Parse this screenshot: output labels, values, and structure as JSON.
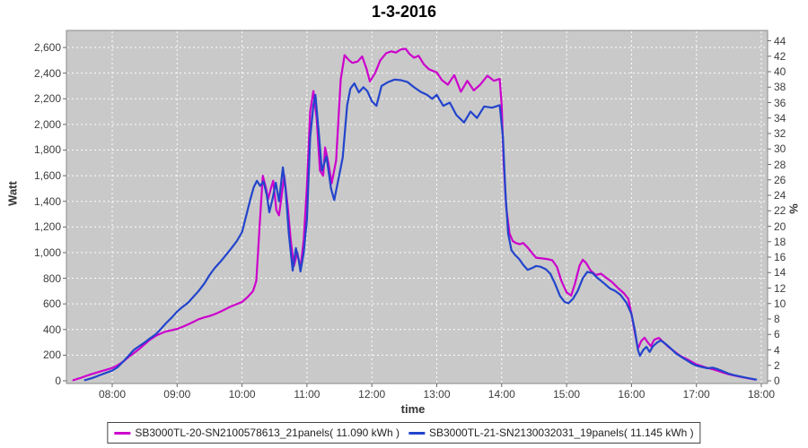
{
  "title": "1-3-2016",
  "axes": {
    "x": {
      "label": "time",
      "tick_labels": [
        "08:00",
        "09:00",
        "10:00",
        "11:00",
        "12:00",
        "13:00",
        "14:00",
        "15:00",
        "16:00",
        "17:00",
        "18:00"
      ]
    },
    "left": {
      "label": "Watt",
      "tick_labels": [
        "0",
        "200",
        "400",
        "600",
        "800",
        "1,000",
        "1,200",
        "1,400",
        "1,600",
        "1,800",
        "2,000",
        "2,200",
        "2,400",
        "2,600"
      ]
    },
    "right": {
      "label": "%",
      "tick_labels": [
        "0",
        "2",
        "4",
        "6",
        "8",
        "10",
        "12",
        "14",
        "16",
        "18",
        "20",
        "22",
        "24",
        "26",
        "28",
        "30",
        "32",
        "34",
        "36",
        "38",
        "40",
        "42",
        "44"
      ]
    }
  },
  "legend": {
    "items": [
      {
        "label": "SB3000TL-20-SN2100578613_21panels( 11.090 kWh )",
        "color": "#cc00cc"
      },
      {
        "label": "SB3000TL-21-SN2130032031_19panels( 11.145 kWh )",
        "color": "#2244cc"
      }
    ]
  },
  "colors": {
    "plot_bg": "#c9c9c9",
    "grid": "#ffffff",
    "axis": "#8a8a8a",
    "tick": "#666666"
  },
  "chart_data": {
    "type": "line",
    "title": "1-3-2016",
    "xlabel": "time",
    "ylabel": "Watt",
    "ylabel_right": "%",
    "x_unit": "hour_of_day",
    "x_range": [
      7.3,
      18.1
    ],
    "x_tick_hours": [
      8,
      9,
      10,
      11,
      12,
      13,
      14,
      15,
      16,
      17,
      18
    ],
    "ylim_left": [
      0,
      2600
    ],
    "y_left_tick_step": 200,
    "ylim_right": [
      0,
      44
    ],
    "y_right_tick_step": 2,
    "grid": "white dashed on gray background",
    "legend_position": "bottom-center",
    "series": [
      {
        "name": "SB3000TL-20-SN2100578613_21panels( 11.090 kWh )",
        "color": "#cc00cc",
        "unit": "W",
        "points": [
          [
            7.4,
            5
          ],
          [
            7.5,
            20
          ],
          [
            7.58,
            35
          ],
          [
            7.67,
            50
          ],
          [
            7.75,
            62
          ],
          [
            7.83,
            75
          ],
          [
            7.92,
            88
          ],
          [
            8.0,
            100
          ],
          [
            8.08,
            120
          ],
          [
            8.17,
            150
          ],
          [
            8.25,
            185
          ],
          [
            8.33,
            215
          ],
          [
            8.42,
            250
          ],
          [
            8.5,
            285
          ],
          [
            8.58,
            320
          ],
          [
            8.67,
            350
          ],
          [
            8.75,
            370
          ],
          [
            8.83,
            385
          ],
          [
            8.92,
            395
          ],
          [
            9.0,
            405
          ],
          [
            9.08,
            420
          ],
          [
            9.17,
            440
          ],
          [
            9.25,
            460
          ],
          [
            9.33,
            480
          ],
          [
            9.42,
            495
          ],
          [
            9.5,
            505
          ],
          [
            9.58,
            520
          ],
          [
            9.67,
            540
          ],
          [
            9.75,
            560
          ],
          [
            9.83,
            580
          ],
          [
            9.92,
            598
          ],
          [
            10.0,
            615
          ],
          [
            10.08,
            650
          ],
          [
            10.17,
            700
          ],
          [
            10.22,
            780
          ],
          [
            10.27,
            1200
          ],
          [
            10.32,
            1600
          ],
          [
            10.37,
            1500
          ],
          [
            10.4,
            1415
          ],
          [
            10.45,
            1510
          ],
          [
            10.48,
            1560
          ],
          [
            10.53,
            1330
          ],
          [
            10.57,
            1290
          ],
          [
            10.62,
            1480
          ],
          [
            10.65,
            1600
          ],
          [
            10.7,
            1380
          ],
          [
            10.75,
            1100
          ],
          [
            10.8,
            895
          ],
          [
            10.85,
            1000
          ],
          [
            10.9,
            880
          ],
          [
            10.95,
            1100
          ],
          [
            11.0,
            1520
          ],
          [
            11.05,
            2100
          ],
          [
            11.1,
            2260
          ],
          [
            11.15,
            2050
          ],
          [
            11.2,
            1640
          ],
          [
            11.25,
            1600
          ],
          [
            11.28,
            1820
          ],
          [
            11.33,
            1700
          ],
          [
            11.38,
            1540
          ],
          [
            11.45,
            1720
          ],
          [
            11.52,
            2350
          ],
          [
            11.58,
            2540
          ],
          [
            11.65,
            2500
          ],
          [
            11.7,
            2480
          ],
          [
            11.78,
            2490
          ],
          [
            11.85,
            2530
          ],
          [
            11.92,
            2430
          ],
          [
            11.97,
            2335
          ],
          [
            12.05,
            2400
          ],
          [
            12.13,
            2500
          ],
          [
            12.22,
            2555
          ],
          [
            12.3,
            2570
          ],
          [
            12.37,
            2560
          ],
          [
            12.45,
            2585
          ],
          [
            12.52,
            2590
          ],
          [
            12.58,
            2550
          ],
          [
            12.65,
            2520
          ],
          [
            12.72,
            2535
          ],
          [
            12.8,
            2470
          ],
          [
            12.88,
            2430
          ],
          [
            13.0,
            2405
          ],
          [
            13.08,
            2345
          ],
          [
            13.17,
            2310
          ],
          [
            13.27,
            2385
          ],
          [
            13.37,
            2255
          ],
          [
            13.47,
            2340
          ],
          [
            13.57,
            2265
          ],
          [
            13.67,
            2310
          ],
          [
            13.78,
            2380
          ],
          [
            13.88,
            2340
          ],
          [
            13.97,
            2355
          ],
          [
            14.0,
            2150
          ],
          [
            14.03,
            1700
          ],
          [
            14.07,
            1350
          ],
          [
            14.12,
            1150
          ],
          [
            14.17,
            1090
          ],
          [
            14.22,
            1075
          ],
          [
            14.28,
            1065
          ],
          [
            14.33,
            1075
          ],
          [
            14.4,
            1040
          ],
          [
            14.47,
            995
          ],
          [
            14.53,
            960
          ],
          [
            14.62,
            955
          ],
          [
            14.7,
            950
          ],
          [
            14.78,
            940
          ],
          [
            14.85,
            890
          ],
          [
            14.92,
            780
          ],
          [
            15.0,
            690
          ],
          [
            15.07,
            665
          ],
          [
            15.13,
            760
          ],
          [
            15.2,
            900
          ],
          [
            15.25,
            944
          ],
          [
            15.3,
            920
          ],
          [
            15.37,
            860
          ],
          [
            15.45,
            825
          ],
          [
            15.53,
            835
          ],
          [
            15.62,
            800
          ],
          [
            15.7,
            770
          ],
          [
            15.8,
            720
          ],
          [
            15.88,
            685
          ],
          [
            15.95,
            640
          ],
          [
            16.0,
            520
          ],
          [
            16.05,
            380
          ],
          [
            16.1,
            250
          ],
          [
            16.15,
            310
          ],
          [
            16.2,
            336
          ],
          [
            16.25,
            300
          ],
          [
            16.3,
            270
          ],
          [
            16.35,
            320
          ],
          [
            16.42,
            335
          ],
          [
            16.5,
            298
          ],
          [
            16.58,
            260
          ],
          [
            16.67,
            225
          ],
          [
            16.75,
            195
          ],
          [
            16.83,
            175
          ],
          [
            16.92,
            150
          ],
          [
            17.0,
            128
          ],
          [
            17.08,
            115
          ],
          [
            17.17,
            100
          ],
          [
            17.25,
            90
          ],
          [
            17.33,
            78
          ],
          [
            17.42,
            62
          ],
          [
            17.5,
            50
          ],
          [
            17.58,
            42
          ],
          [
            17.67,
            32
          ],
          [
            17.75,
            24
          ],
          [
            17.83,
            16
          ],
          [
            17.9,
            10
          ]
        ]
      },
      {
        "name": "SB3000TL-21-SN2130032031_19panels( 11.145 kWh )",
        "color": "#2244cc",
        "unit": "W",
        "points": [
          [
            7.58,
            5
          ],
          [
            7.67,
            18
          ],
          [
            7.75,
            32
          ],
          [
            7.83,
            48
          ],
          [
            7.92,
            65
          ],
          [
            8.0,
            80
          ],
          [
            8.08,
            105
          ],
          [
            8.17,
            150
          ],
          [
            8.25,
            195
          ],
          [
            8.33,
            240
          ],
          [
            8.42,
            272
          ],
          [
            8.5,
            300
          ],
          [
            8.58,
            330
          ],
          [
            8.67,
            362
          ],
          [
            8.75,
            405
          ],
          [
            8.83,
            450
          ],
          [
            8.92,
            495
          ],
          [
            9.0,
            540
          ],
          [
            9.08,
            575
          ],
          [
            9.17,
            610
          ],
          [
            9.25,
            655
          ],
          [
            9.33,
            700
          ],
          [
            9.42,
            760
          ],
          [
            9.5,
            825
          ],
          [
            9.58,
            880
          ],
          [
            9.67,
            930
          ],
          [
            9.75,
            980
          ],
          [
            9.83,
            1030
          ],
          [
            9.92,
            1090
          ],
          [
            10.0,
            1160
          ],
          [
            10.07,
            1300
          ],
          [
            10.13,
            1420
          ],
          [
            10.18,
            1510
          ],
          [
            10.23,
            1560
          ],
          [
            10.28,
            1520
          ],
          [
            10.33,
            1555
          ],
          [
            10.38,
            1450
          ],
          [
            10.42,
            1315
          ],
          [
            10.47,
            1420
          ],
          [
            10.52,
            1545
          ],
          [
            10.57,
            1400
          ],
          [
            10.63,
            1665
          ],
          [
            10.67,
            1500
          ],
          [
            10.72,
            1150
          ],
          [
            10.78,
            860
          ],
          [
            10.83,
            1035
          ],
          [
            10.87,
            950
          ],
          [
            10.9,
            853
          ],
          [
            10.95,
            1000
          ],
          [
            11.0,
            1260
          ],
          [
            11.05,
            1900
          ],
          [
            11.1,
            2150
          ],
          [
            11.13,
            2230
          ],
          [
            11.18,
            1950
          ],
          [
            11.23,
            1640
          ],
          [
            11.3,
            1750
          ],
          [
            11.37,
            1500
          ],
          [
            11.42,
            1410
          ],
          [
            11.48,
            1560
          ],
          [
            11.55,
            1740
          ],
          [
            11.62,
            2150
          ],
          [
            11.67,
            2280
          ],
          [
            11.73,
            2320
          ],
          [
            11.8,
            2250
          ],
          [
            11.87,
            2290
          ],
          [
            11.93,
            2260
          ],
          [
            12.0,
            2180
          ],
          [
            12.07,
            2145
          ],
          [
            12.15,
            2300
          ],
          [
            12.25,
            2330
          ],
          [
            12.35,
            2350
          ],
          [
            12.45,
            2345
          ],
          [
            12.55,
            2330
          ],
          [
            12.65,
            2290
          ],
          [
            12.75,
            2255
          ],
          [
            12.85,
            2230
          ],
          [
            12.93,
            2200
          ],
          [
            13.0,
            2230
          ],
          [
            13.1,
            2145
          ],
          [
            13.2,
            2170
          ],
          [
            13.3,
            2075
          ],
          [
            13.42,
            2015
          ],
          [
            13.52,
            2100
          ],
          [
            13.62,
            2050
          ],
          [
            13.73,
            2140
          ],
          [
            13.85,
            2130
          ],
          [
            13.97,
            2150
          ],
          [
            14.02,
            1900
          ],
          [
            14.06,
            1450
          ],
          [
            14.1,
            1150
          ],
          [
            14.15,
            1020
          ],
          [
            14.2,
            985
          ],
          [
            14.27,
            950
          ],
          [
            14.33,
            905
          ],
          [
            14.4,
            865
          ],
          [
            14.47,
            880
          ],
          [
            14.53,
            895
          ],
          [
            14.6,
            890
          ],
          [
            14.68,
            870
          ],
          [
            14.75,
            835
          ],
          [
            14.82,
            760
          ],
          [
            14.9,
            660
          ],
          [
            14.97,
            615
          ],
          [
            15.03,
            605
          ],
          [
            15.1,
            640
          ],
          [
            15.17,
            700
          ],
          [
            15.25,
            800
          ],
          [
            15.32,
            850
          ],
          [
            15.4,
            840
          ],
          [
            15.48,
            800
          ],
          [
            15.58,
            760
          ],
          [
            15.67,
            720
          ],
          [
            15.75,
            700
          ],
          [
            15.83,
            670
          ],
          [
            15.92,
            610
          ],
          [
            16.0,
            520
          ],
          [
            16.05,
            400
          ],
          [
            16.1,
            240
          ],
          [
            16.13,
            195
          ],
          [
            16.18,
            240
          ],
          [
            16.23,
            265
          ],
          [
            16.28,
            225
          ],
          [
            16.33,
            270
          ],
          [
            16.4,
            300
          ],
          [
            16.45,
            315
          ],
          [
            16.52,
            290
          ],
          [
            16.6,
            255
          ],
          [
            16.68,
            215
          ],
          [
            16.77,
            185
          ],
          [
            16.85,
            160
          ],
          [
            16.93,
            135
          ],
          [
            17.0,
            118
          ],
          [
            17.08,
            108
          ],
          [
            17.17,
            98
          ],
          [
            17.25,
            103
          ],
          [
            17.33,
            90
          ],
          [
            17.42,
            72
          ],
          [
            17.5,
            55
          ],
          [
            17.58,
            44
          ],
          [
            17.67,
            34
          ],
          [
            17.75,
            26
          ],
          [
            17.83,
            18
          ],
          [
            17.92,
            10
          ]
        ]
      }
    ]
  }
}
